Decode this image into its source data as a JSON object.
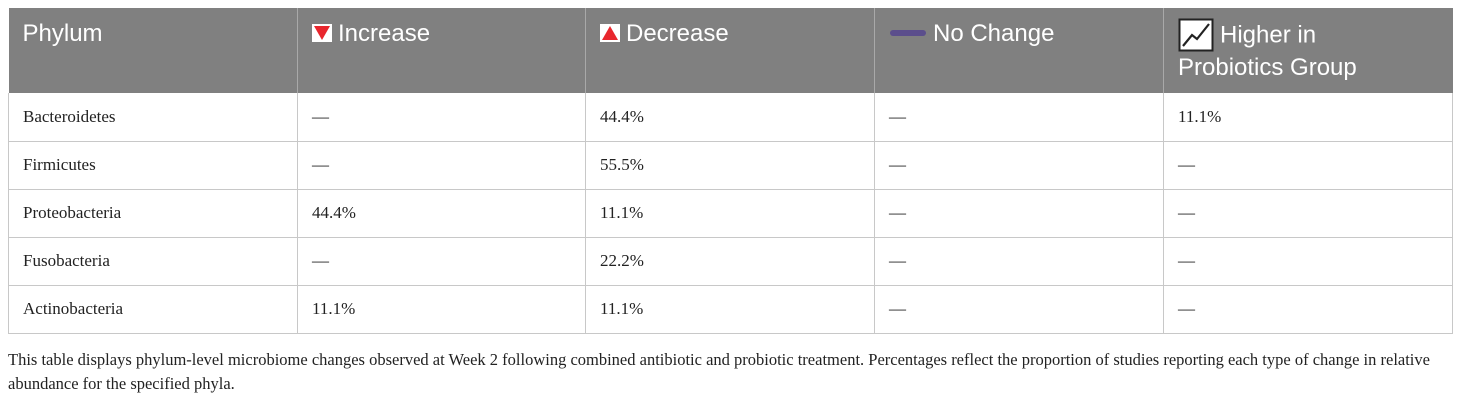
{
  "table": {
    "headers": {
      "phylum": "Phylum",
      "increase": "Increase",
      "decrease": "Decrease",
      "no_change": "No Change",
      "higher_probiotics_line1": "Higher in",
      "higher_probiotics_line2": "Probiotics Group"
    },
    "icons": {
      "increase": "red-down-triangle-icon",
      "decrease": "red-up-triangle-icon",
      "no_change": "purple-dash-icon",
      "higher_probiotics": "trend-line-icon"
    },
    "colors": {
      "header_bg": "#808080",
      "increase_icon": "#e8262d",
      "decrease_icon": "#e8262d",
      "no_change_icon": "#5b4e8c"
    },
    "rows": [
      {
        "phylum": "Bacteroidetes",
        "increase": "—",
        "decrease": "44.4%",
        "no_change": "—",
        "higher_probiotics": "11.1%"
      },
      {
        "phylum": "Firmicutes",
        "increase": "—",
        "decrease": "55.5%",
        "no_change": "—",
        "higher_probiotics": "—"
      },
      {
        "phylum": "Proteobacteria",
        "increase": "44.4%",
        "decrease": "11.1%",
        "no_change": "—",
        "higher_probiotics": "—"
      },
      {
        "phylum": "Fusobacteria",
        "increase": "—",
        "decrease": "22.2%",
        "no_change": "—",
        "higher_probiotics": "—"
      },
      {
        "phylum": "Actinobacteria",
        "increase": "11.1%",
        "decrease": "11.1%",
        "no_change": "—",
        "higher_probiotics": "—"
      }
    ]
  },
  "caption": "This table displays phylum-level microbiome changes observed at Week 2 following combined antibiotic and probiotic treatment. Percentages reflect the proportion of studies reporting each type of change in relative abundance for the specified phyla."
}
